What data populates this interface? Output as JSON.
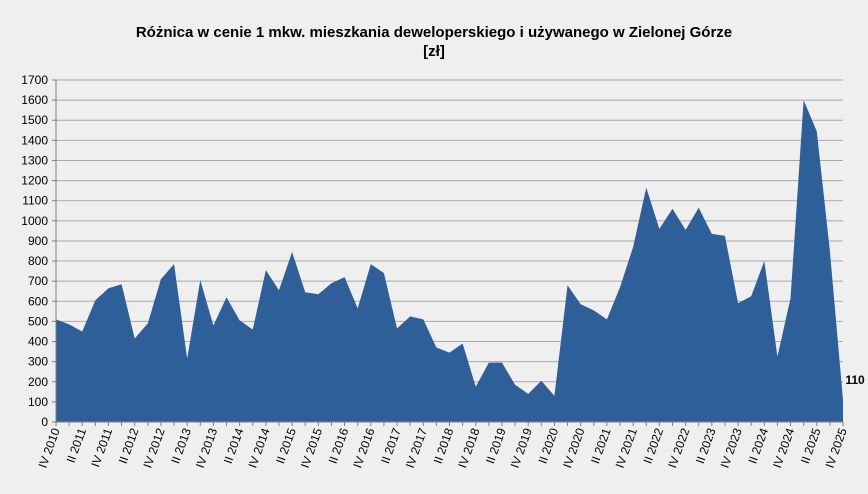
{
  "chart_data": {
    "type": "area",
    "title_line1": "Różnica w cenie 1 mkw. mieszkania deweloperskiego i używanego w Zielonej Górze",
    "title_line2": "[zł]",
    "xlabel": "",
    "ylabel": "",
    "ylim": [
      0,
      1700
    ],
    "yticks": [
      0,
      100,
      200,
      300,
      400,
      500,
      600,
      700,
      800,
      900,
      1000,
      1100,
      1200,
      1300,
      1400,
      1500,
      1600,
      1700
    ],
    "grid": true,
    "legend": "none",
    "color": "#2f5f98",
    "x": [
      "IV 2010",
      "I 2011",
      "II 2011",
      "III 2011",
      "IV 2011",
      "I 2012",
      "II 2012",
      "III 2012",
      "IV 2012",
      "I 2013",
      "II 2013",
      "III 2013",
      "IV 2013",
      "I 2014",
      "II 2014",
      "III 2014",
      "IV 2014",
      "I 2015",
      "II 2015",
      "III 2015",
      "IV 2015",
      "I 2016",
      "II 2016",
      "III 2016",
      "IV 2016",
      "I 2017",
      "II 2017",
      "III 2017",
      "IV 2017",
      "I 2018",
      "II 2018",
      "III 2018",
      "IV 2018",
      "I 2019",
      "II 2019",
      "III 2019",
      "IV 2019",
      "I 2020",
      "II 2020",
      "III 2020",
      "IV 2020",
      "I 2021",
      "II 2021",
      "III 2021",
      "IV 2021",
      "I 2022",
      "II 2022",
      "III 2022",
      "IV 2022",
      "I 2023",
      "II 2023",
      "III 2023",
      "IV 2023",
      "I 2024",
      "II 2024",
      "III 2024",
      "IV 2024",
      "I 2025",
      "II 2025",
      "III 2025",
      "IV 2025"
    ],
    "xtick_labels": [
      "IV 2010",
      "II 2011",
      "IV 2011",
      "II 2012",
      "IV 2012",
      "II 2013",
      "IV 2013",
      "II 2014",
      "IV 2014",
      "II 2015",
      "IV 2015",
      "II 2016",
      "IV 2016",
      "II 2017",
      "IV 2017",
      "II 2018",
      "IV 2018",
      "II 2019",
      "IV 2019",
      "II 2020",
      "IV 2020",
      "II 2021",
      "IV 2021",
      "II 2022",
      "IV 2022",
      "II 2023",
      "IV 2023",
      "II 2024",
      "IV 2024",
      "II 2025",
      "IV 2025"
    ],
    "values": [
      510,
      485,
      450,
      605,
      665,
      685,
      415,
      490,
      710,
      785,
      315,
      705,
      480,
      620,
      505,
      460,
      755,
      655,
      845,
      645,
      635,
      690,
      720,
      565,
      785,
      740,
      465,
      525,
      510,
      370,
      345,
      390,
      175,
      295,
      295,
      185,
      140,
      205,
      130,
      680,
      585,
      555,
      510,
      670,
      870,
      1165,
      960,
      1060,
      955,
      1065,
      935,
      925,
      590,
      625,
      800,
      325,
      615,
      1600,
      1445,
      850,
      110
    ],
    "annotation": "110"
  }
}
